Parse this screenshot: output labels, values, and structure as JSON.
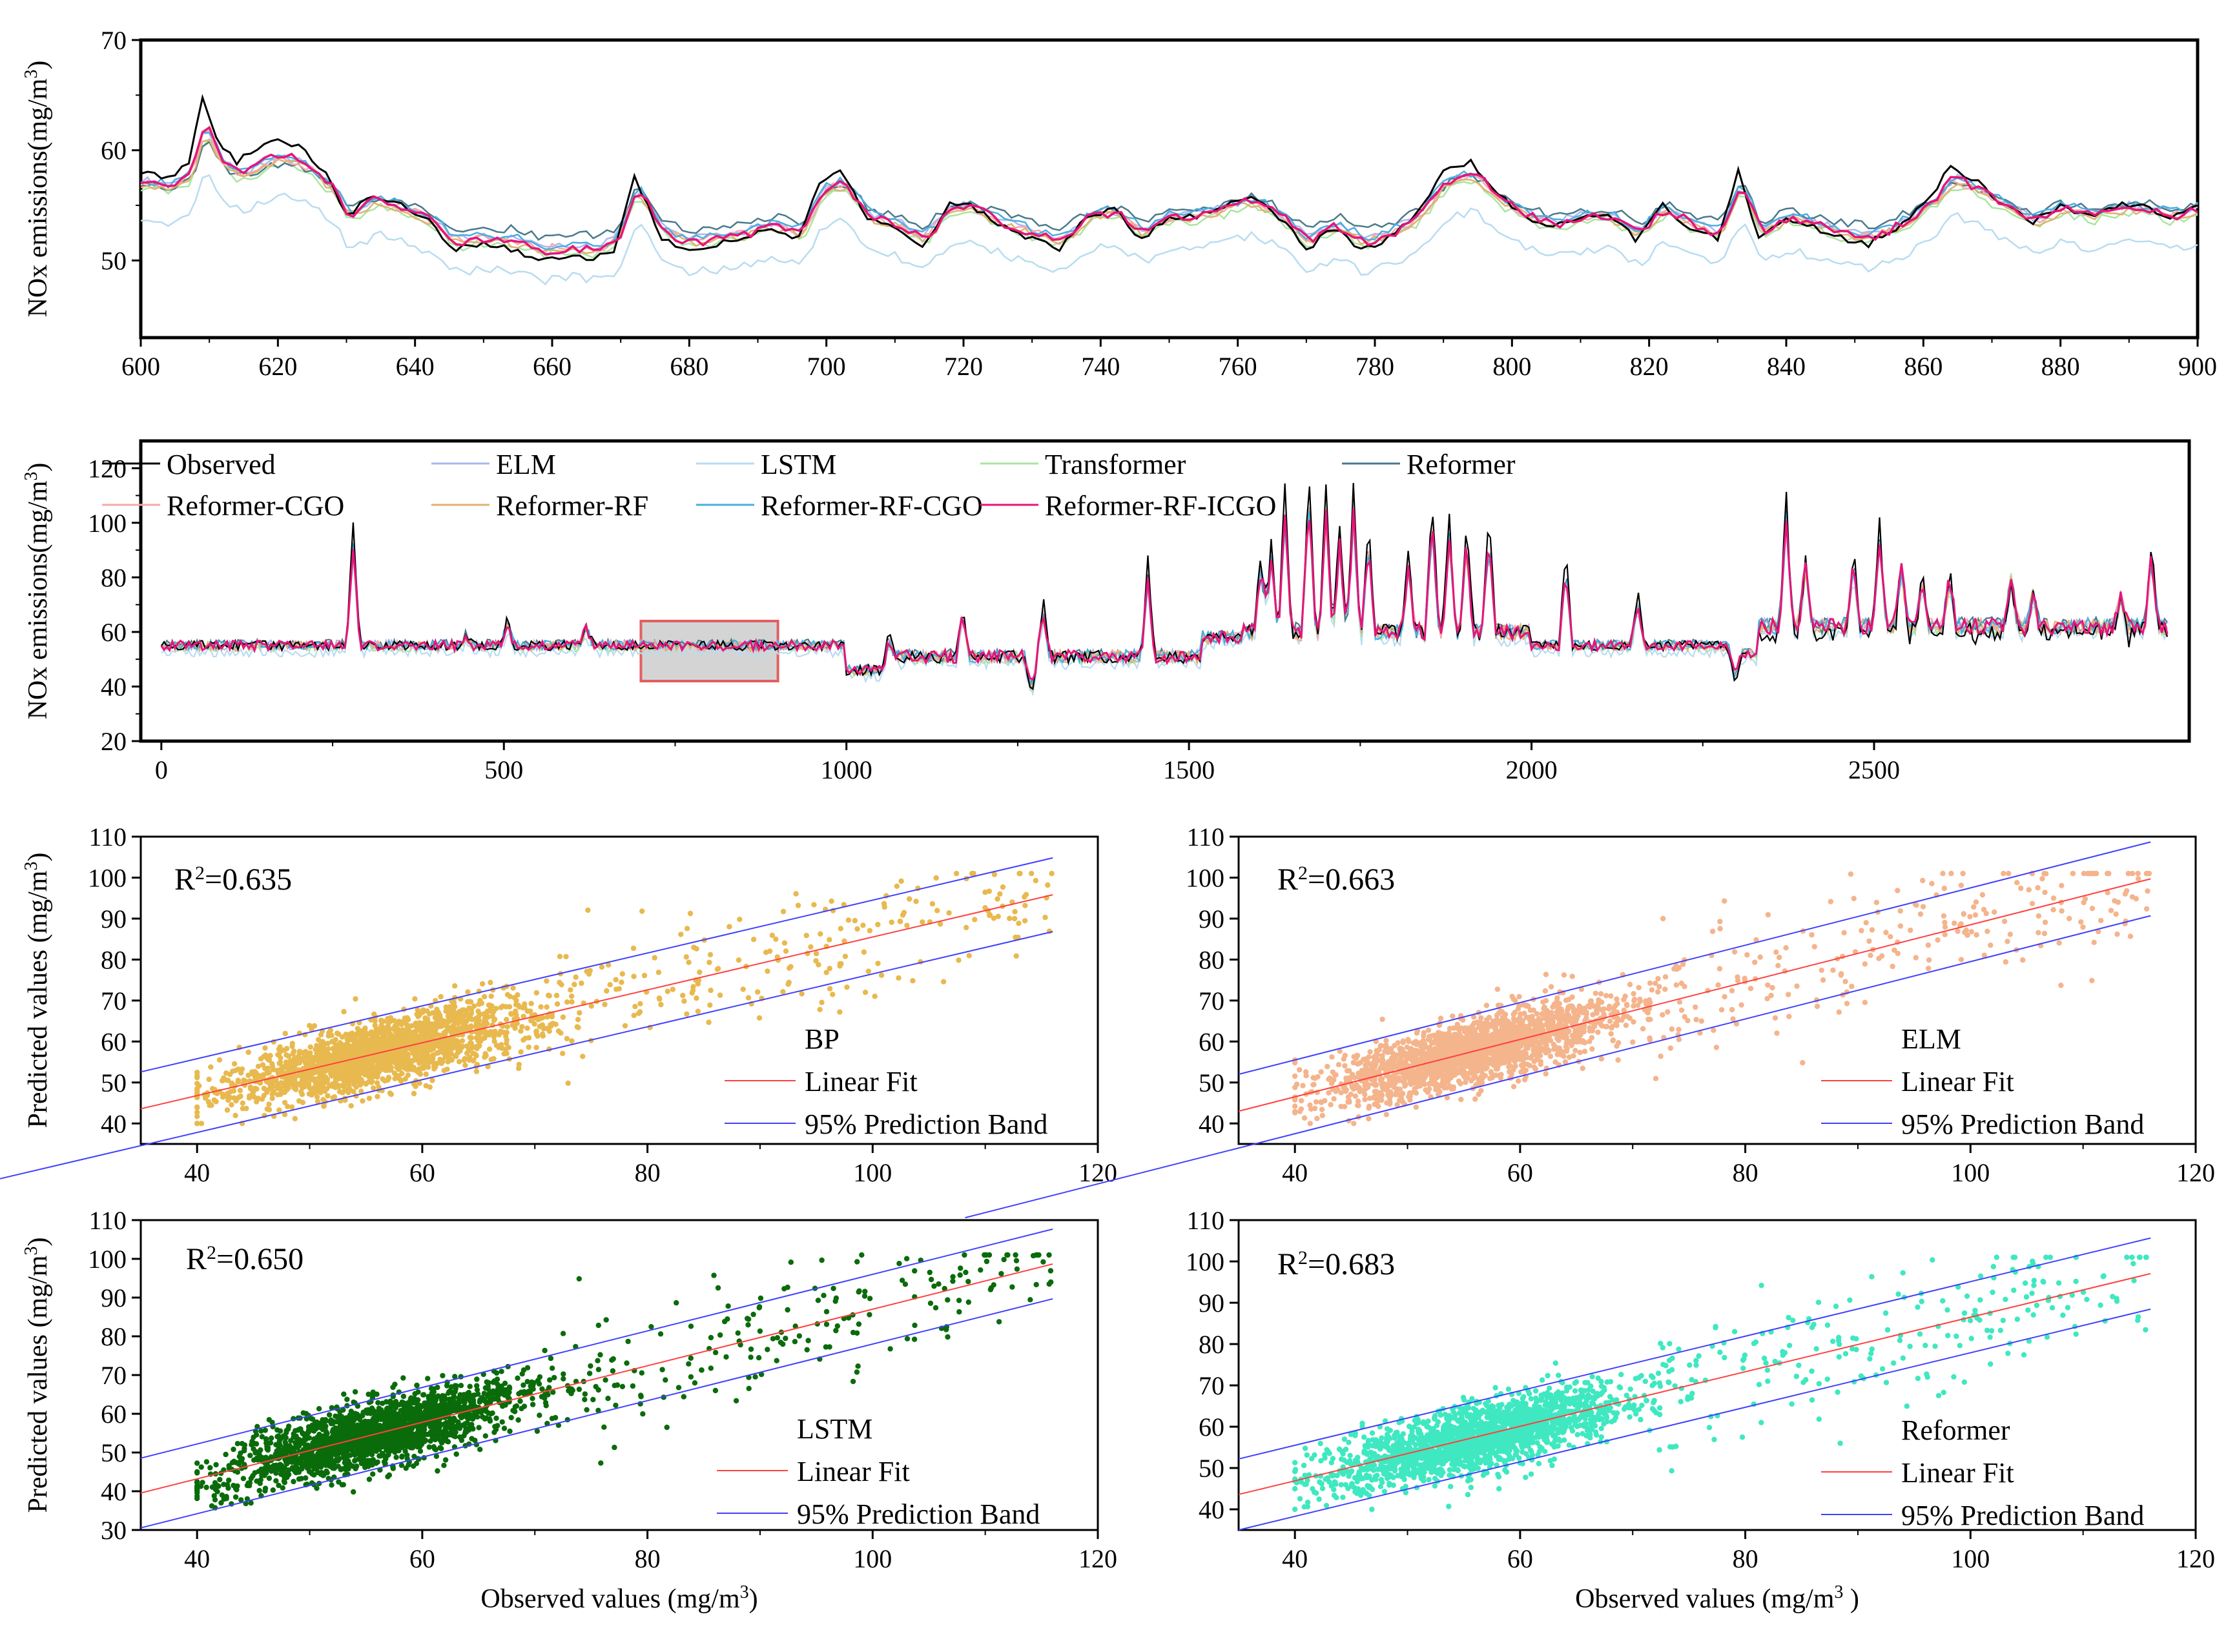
{
  "colors": {
    "Observed": "#000000",
    "ELM": "#a9b8f0",
    "LSTM": "#b8dcf2",
    "Transformer": "#a8e6a0",
    "Reformer": "#4a7a8a",
    "Reformer-CGO": "#f5a9a9",
    "Reformer-RF": "#e0b070",
    "Reformer-RF-CGO": "#4aaee0",
    "Reformer-RF-ICGO": "#e6157a",
    "zoom_box_fill": "#cccccc",
    "zoom_box_stroke": "#e06060",
    "fit_line": "#ff4040",
    "band_line": "#4040ff"
  },
  "chart_data": [
    {
      "id": "zoom",
      "type": "line",
      "ylabel": "NOx emissions(mg/m3)",
      "ylabel_sup": "3",
      "xlim": [
        600,
        900
      ],
      "ylim": [
        43,
        70
      ],
      "x_ticks": [
        "600",
        "620",
        "640",
        "660",
        "680",
        "700",
        "720",
        "740",
        "760",
        "780",
        "800",
        "820",
        "840",
        "860",
        "880",
        "900"
      ],
      "y_ticks": [
        "50",
        "60",
        "70"
      ],
      "observed_keypoints": [
        [
          600,
          58
        ],
        [
          604,
          57.5
        ],
        [
          607,
          59
        ],
        [
          609,
          65
        ],
        [
          611,
          61
        ],
        [
          614,
          59
        ],
        [
          617,
          60
        ],
        [
          620,
          61
        ],
        [
          624,
          60
        ],
        [
          628,
          57
        ],
        [
          630,
          54
        ],
        [
          634,
          56
        ],
        [
          638,
          55
        ],
        [
          642,
          53.5
        ],
        [
          646,
          51
        ],
        [
          650,
          51.5
        ],
        [
          654,
          51
        ],
        [
          658,
          50
        ],
        [
          662,
          50.5
        ],
        [
          666,
          50
        ],
        [
          669,
          51
        ],
        [
          672,
          57.5
        ],
        [
          676,
          52
        ],
        [
          680,
          51
        ],
        [
          684,
          51.5
        ],
        [
          688,
          52
        ],
        [
          692,
          53
        ],
        [
          696,
          52
        ],
        [
          699,
          57
        ],
        [
          702,
          58
        ],
        [
          706,
          54
        ],
        [
          710,
          53
        ],
        [
          714,
          51.5
        ],
        [
          718,
          55
        ],
        [
          721,
          55
        ],
        [
          726,
          53
        ],
        [
          730,
          52
        ],
        [
          734,
          51
        ],
        [
          738,
          54
        ],
        [
          742,
          54.5
        ],
        [
          746,
          52
        ],
        [
          750,
          54
        ],
        [
          754,
          54
        ],
        [
          758,
          55
        ],
        [
          762,
          56
        ],
        [
          766,
          54
        ],
        [
          770,
          51
        ],
        [
          774,
          53
        ],
        [
          778,
          51
        ],
        [
          782,
          52
        ],
        [
          786,
          54
        ],
        [
          790,
          58
        ],
        [
          794,
          59
        ],
        [
          798,
          56
        ],
        [
          802,
          54
        ],
        [
          806,
          53
        ],
        [
          810,
          54
        ],
        [
          814,
          54
        ],
        [
          818,
          52
        ],
        [
          822,
          55
        ],
        [
          826,
          53
        ],
        [
          830,
          52
        ],
        [
          833,
          58
        ],
        [
          836,
          52
        ],
        [
          840,
          54
        ],
        [
          844,
          53
        ],
        [
          848,
          52
        ],
        [
          852,
          51.5
        ],
        [
          856,
          53
        ],
        [
          860,
          55
        ],
        [
          864,
          58.5
        ],
        [
          868,
          57
        ],
        [
          872,
          55
        ],
        [
          876,
          53.5
        ],
        [
          880,
          55
        ],
        [
          884,
          54
        ],
        [
          888,
          55
        ],
        [
          892,
          55
        ],
        [
          896,
          54
        ],
        [
          900,
          55
        ]
      ]
    },
    {
      "id": "overview",
      "type": "line",
      "ylabel": "NOx emissions(mg/m3)",
      "ylabel_sup": "3",
      "xlim": [
        -30,
        2960
      ],
      "ylim": [
        20,
        130
      ],
      "x_ticks": [
        "0",
        "500",
        "1000",
        "1500",
        "2000",
        "2500"
      ],
      "y_ticks": [
        "20",
        "40",
        "60",
        "80",
        "100",
        "120"
      ],
      "legend": [
        "Observed",
        "ELM",
        "LSTM",
        "Transformer",
        "Reformer",
        "Reformer-CGO",
        "Reformer-RF",
        "Reformer-RF-CGO",
        "Reformer-RF-ICGO"
      ],
      "zoom_range": [
        700,
        900,
        42,
        64
      ],
      "segments": [
        {
          "x0": 0,
          "x1": 1000,
          "base": 55,
          "noise": 3
        },
        {
          "x0": 1000,
          "x1": 1060,
          "base": 46,
          "noise": 3
        },
        {
          "x0": 1060,
          "x1": 1520,
          "base": 51,
          "noise": 4
        },
        {
          "x0": 1520,
          "x1": 1580,
          "base": 58,
          "noise": 4
        },
        {
          "x0": 1580,
          "x1": 2000,
          "base": 60,
          "noise": 5
        },
        {
          "x0": 2000,
          "x1": 2300,
          "base": 55,
          "noise": 3
        },
        {
          "x0": 2300,
          "x1": 2330,
          "base": 52,
          "noise": 3
        },
        {
          "x0": 2330,
          "x1": 2930,
          "base": 62,
          "noise": 5
        }
      ],
      "spikes": [
        [
          280,
          100
        ],
        [
          445,
          60
        ],
        [
          505,
          65
        ],
        [
          620,
          63
        ],
        [
          1062,
          58
        ],
        [
          1170,
          70
        ],
        [
          1270,
          35
        ],
        [
          1287,
          72
        ],
        [
          1440,
          86
        ],
        [
          1605,
          90
        ],
        [
          1620,
          95
        ],
        [
          1640,
          112
        ],
        [
          1675,
          120
        ],
        [
          1700,
          114
        ],
        [
          1720,
          100
        ],
        [
          1740,
          113
        ],
        [
          1762,
          102
        ],
        [
          1820,
          89
        ],
        [
          1855,
          110
        ],
        [
          1880,
          102
        ],
        [
          1905,
          100
        ],
        [
          1938,
          102
        ],
        [
          2050,
          90
        ],
        [
          2155,
          75
        ],
        [
          2297,
          41
        ],
        [
          2372,
          112
        ],
        [
          2400,
          90
        ],
        [
          2470,
          91
        ],
        [
          2508,
          102
        ],
        [
          2540,
          88
        ],
        [
          2570,
          85
        ],
        [
          2610,
          84
        ],
        [
          2700,
          84
        ],
        [
          2732,
          76
        ],
        [
          2860,
          75
        ],
        [
          2905,
          95
        ]
      ]
    },
    {
      "id": "scatter-bp",
      "type": "scatter",
      "label": "BP",
      "r2_value": "0.635",
      "ylabel": "Predicted values (mg/m3)",
      "ylabel_sup": "3",
      "xlim": [
        35,
        120
      ],
      "ylim": [
        35,
        110
      ],
      "x_ticks": [
        "40",
        "60",
        "80",
        "100",
        "120"
      ],
      "y_ticks": [
        "40",
        "50",
        "60",
        "70",
        "80",
        "90",
        "100",
        "110"
      ],
      "color": "#e8b94f",
      "fit": {
        "slope": 0.645,
        "intercept": 21.0
      },
      "band": 9.0,
      "seed": 11,
      "legend": [
        "BP",
        "Linear Fit",
        "95% Prediction Band"
      ]
    },
    {
      "id": "scatter-elm",
      "type": "scatter",
      "label": "ELM",
      "r2_value": "0.663",
      "ylabel": "",
      "xlim": [
        35,
        120
      ],
      "ylim": [
        35,
        110
      ],
      "x_ticks": [
        "40",
        "60",
        "80",
        "100",
        "120"
      ],
      "y_ticks": [
        "40",
        "50",
        "60",
        "70",
        "80",
        "90",
        "100",
        "110"
      ],
      "color": "#f4b48c",
      "fit": {
        "slope": 0.7,
        "intercept": 18.5
      },
      "band": 9.0,
      "seed": 23,
      "legend": [
        "ELM",
        "Linear Fit",
        "95% Prediction Band"
      ]
    },
    {
      "id": "scatter-lstm",
      "type": "scatter",
      "label": "LSTM",
      "r2_value": "0.650",
      "ylabel": "Predicted values (mg/m3)",
      "ylabel_sup": "3",
      "xlabel": "Observed values (mg/m3)",
      "xlabel_sup": "3",
      "xlim": [
        35,
        120
      ],
      "ylim": [
        30,
        110
      ],
      "x_ticks": [
        "40",
        "60",
        "80",
        "100",
        "120"
      ],
      "y_ticks": [
        "30",
        "40",
        "50",
        "60",
        "70",
        "80",
        "90",
        "100",
        "110"
      ],
      "color": "#0a6b0a",
      "fit": {
        "slope": 0.73,
        "intercept": 14.0
      },
      "band": 9.0,
      "seed": 37,
      "legend": [
        "LSTM",
        "Linear Fit",
        "95% Prediction Band"
      ]
    },
    {
      "id": "scatter-reformer",
      "type": "scatter",
      "label": "Reformer",
      "r2_value": "0.683",
      "ylabel": "",
      "xlabel": "Observed values (mg/m3 )",
      "xlabel_sup": "3",
      "xlim": [
        35,
        120
      ],
      "ylim": [
        35,
        110
      ],
      "x_ticks": [
        "40",
        "60",
        "80",
        "100",
        "120"
      ],
      "y_ticks": [
        "40",
        "50",
        "60",
        "70",
        "80",
        "90",
        "100",
        "110"
      ],
      "color": "#3fe8c0",
      "fit": {
        "slope": 0.66,
        "intercept": 20.5
      },
      "band": 8.6,
      "seed": 53,
      "legend": [
        "Reformer",
        "Linear Fit",
        "95% Prediction Band"
      ]
    }
  ]
}
